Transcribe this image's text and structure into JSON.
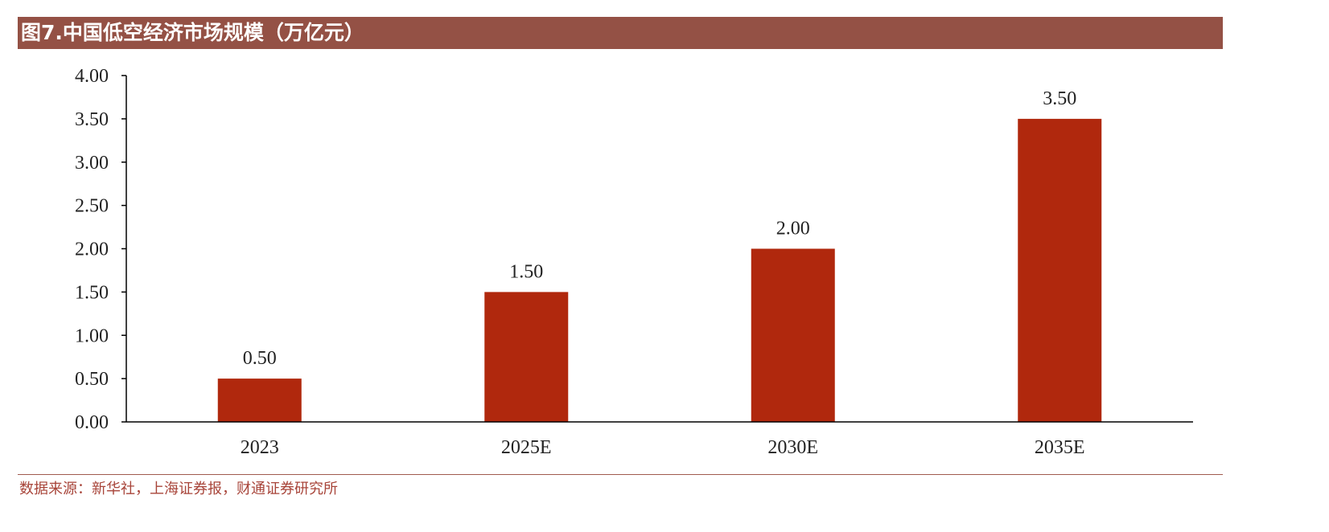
{
  "title": "图7.中国低空经济市场规模（万亿元）",
  "source": "数据来源：新华社，上海证券报，财通证券研究所",
  "chart_data": {
    "type": "bar",
    "categories": [
      "2023",
      "2025E",
      "2030E",
      "2035E"
    ],
    "values": [
      0.5,
      1.5,
      2.0,
      3.5
    ],
    "value_labels": [
      "0.50",
      "1.50",
      "2.00",
      "3.50"
    ],
    "y_ticks": [
      "0.00",
      "0.50",
      "1.00",
      "1.50",
      "2.00",
      "2.50",
      "3.00",
      "3.50",
      "4.00"
    ],
    "ylim": [
      0,
      4
    ],
    "grid": false,
    "bar_color": "#b0280d",
    "title_bar_color": "#945145",
    "source_color": "#a8453a"
  }
}
